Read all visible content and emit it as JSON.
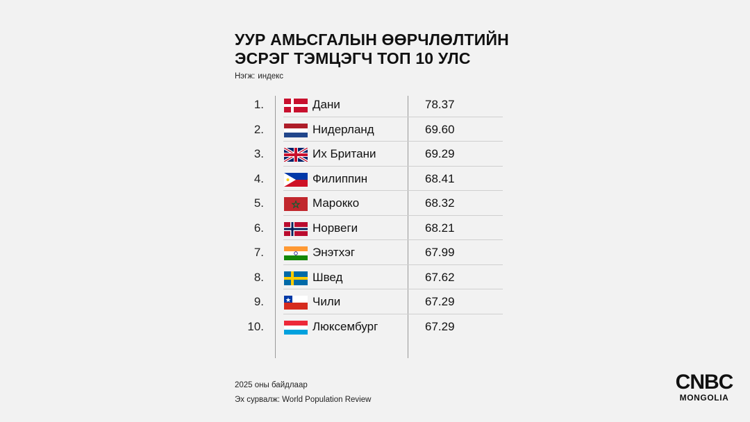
{
  "chart_data": {
    "type": "table",
    "title_line1": "УУР АМЬСГАЛЫН ӨӨРЧЛӨЛТИЙН",
    "title_line2": "ЭСРЭГ ТЭМЦЭГЧ ТОП 10 УЛС",
    "unit_label": "Нэгж:",
    "unit_value": "индекс",
    "rows": [
      {
        "rank": "1.",
        "country": "Дани",
        "value": "78.37",
        "flag": "denmark-flag"
      },
      {
        "rank": "2.",
        "country": "Нидерланд",
        "value": "69.60",
        "flag": "netherlands-flag"
      },
      {
        "rank": "3.",
        "country": "Их Британи",
        "value": "69.29",
        "flag": "uk-flag"
      },
      {
        "rank": "4.",
        "country": "Филиппин",
        "value": "68.41",
        "flag": "philippines-flag"
      },
      {
        "rank": "5.",
        "country": "Марокко",
        "value": "68.32",
        "flag": "morocco-flag"
      },
      {
        "rank": "6.",
        "country": "Норвеги",
        "value": "68.21",
        "flag": "norway-flag"
      },
      {
        "rank": "7.",
        "country": "Энэтхэг",
        "value": "67.99",
        "flag": "india-flag"
      },
      {
        "rank": "8.",
        "country": "Швед",
        "value": "67.62",
        "flag": "sweden-flag"
      },
      {
        "rank": "9.",
        "country": "Чили",
        "value": "67.29",
        "flag": "chile-flag"
      },
      {
        "rank": "10.",
        "country": "Люксембург",
        "value": "67.29",
        "flag": "luxembourg-flag"
      }
    ]
  },
  "footer": {
    "note": "2025 оны байдлаар",
    "source": "Эх сурвалж: World Population Review"
  },
  "logo": {
    "top": "CNBC",
    "bottom": "MONGOLIA"
  },
  "colors": {
    "background": "#f2f2f2",
    "text": "#111111"
  }
}
